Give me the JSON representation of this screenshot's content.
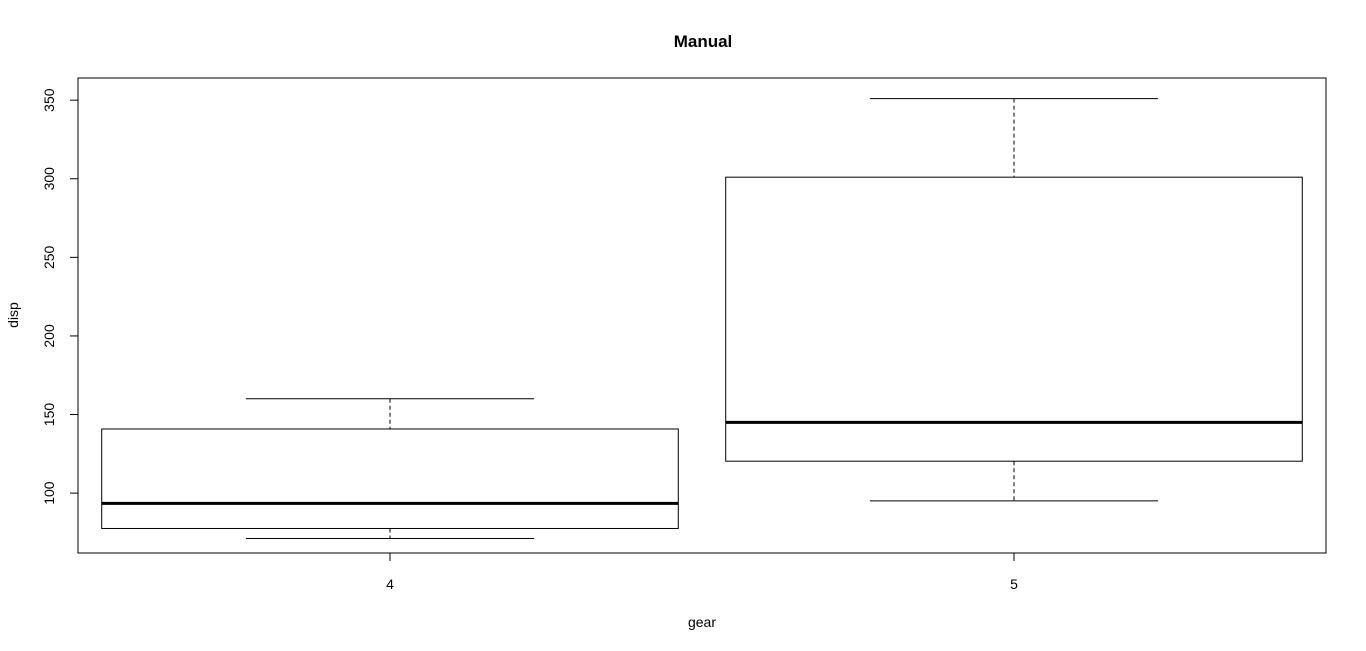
{
  "chart_data": {
    "type": "box",
    "title": "Manual",
    "xlabel": "gear",
    "ylabel": "disp",
    "ylim": [
      61.9,
      364.1
    ],
    "categories": [
      "4",
      "5"
    ],
    "yticks": [
      100,
      150,
      200,
      250,
      300,
      350
    ],
    "boxes": [
      {
        "category": "4",
        "min": 71.1,
        "q1": 77.5,
        "median": 93.5,
        "q3": 140.8,
        "max": 160.0
      },
      {
        "category": "5",
        "min": 95.1,
        "q1": 120.3,
        "median": 145.0,
        "q3": 301.0,
        "max": 351.0
      }
    ],
    "grid": false,
    "legend": "none"
  }
}
